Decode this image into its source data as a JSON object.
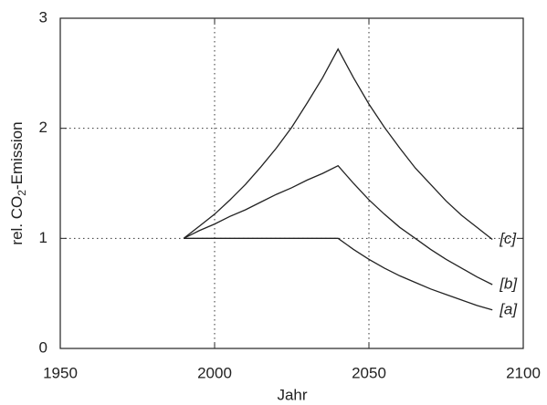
{
  "chart_data": {
    "type": "line",
    "xlabel": "Jahr",
    "ylabel": {
      "pre": "rel. CO",
      "sub": "2",
      "post": "-Emission"
    },
    "x": [
      1990,
      1995,
      2000,
      2005,
      2010,
      2015,
      2020,
      2025,
      2030,
      2035,
      2040,
      2045,
      2050,
      2055,
      2060,
      2065,
      2070,
      2075,
      2080,
      2085,
      2090
    ],
    "series": [
      {
        "name": "[a]",
        "color": "#222222",
        "values": [
          1,
          1,
          1,
          1,
          1,
          1,
          1,
          1,
          1,
          1,
          1,
          0.9,
          0.81,
          0.73,
          0.66,
          0.6,
          0.54,
          0.49,
          0.44,
          0.39,
          0.35
        ]
      },
      {
        "name": "[b]",
        "color": "#222222",
        "values": [
          1,
          1.07,
          1.13,
          1.2,
          1.26,
          1.33,
          1.4,
          1.46,
          1.53,
          1.59,
          1.66,
          1.5,
          1.35,
          1.22,
          1.1,
          1.0,
          0.9,
          0.81,
          0.73,
          0.65,
          0.58
        ]
      },
      {
        "name": "[c]",
        "color": "#222222",
        "values": [
          1,
          1.11,
          1.22,
          1.35,
          1.49,
          1.65,
          1.82,
          2.01,
          2.23,
          2.46,
          2.72,
          2.46,
          2.22,
          2.01,
          1.82,
          1.64,
          1.49,
          1.34,
          1.21,
          1.1,
          0.99
        ]
      }
    ],
    "xlim": [
      1950,
      2100
    ],
    "xticks": [
      1950,
      2000,
      2050,
      2100
    ],
    "ylim": [
      0,
      3
    ],
    "yticks": [
      0,
      1,
      2,
      3
    ],
    "grid": true
  }
}
